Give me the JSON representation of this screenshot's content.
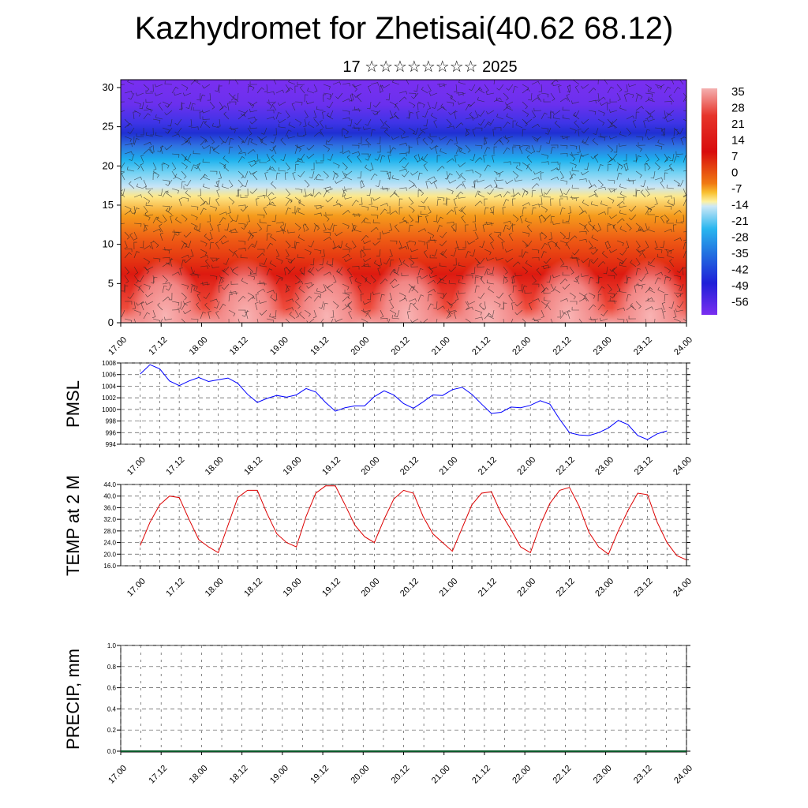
{
  "header": {
    "title": "Kazhydromet for Zhetisai(40.62 68.12)",
    "subtitle": "17 ☆☆☆☆☆☆☆☆ 2025"
  },
  "chart_data": [
    {
      "type": "heatmap",
      "name": "vertical temperature cross-section with wind barbs",
      "x_tick_labels": [
        "17.00",
        "17.12",
        "18.00",
        "18.12",
        "19.00",
        "19.12",
        "20.00",
        "20.12",
        "21.00",
        "21.12",
        "22.00",
        "22.12",
        "23.00",
        "23.12",
        "24.00"
      ],
      "y_tick_labels": [
        "0",
        "5",
        "10",
        "15",
        "20",
        "25",
        "30"
      ],
      "ylim": [
        0,
        31
      ],
      "colorbar_labels": [
        "35",
        "28",
        "21",
        "14",
        "7",
        "0",
        "-7",
        "-14",
        "-21",
        "-28",
        "-35",
        "-42",
        "-49",
        "-56"
      ],
      "colors": {
        "hot": "#f5a3a3",
        "warm": "#dd1a10",
        "orange": "#f07a12",
        "yellow": "#fde88a",
        "pale": "#c7e4f6",
        "cyan": "#26b7ef",
        "blue": "#1f3ad6",
        "violet": "#7a2ff0"
      }
    },
    {
      "type": "line",
      "ylabel": "PMSL",
      "color": "#0000ff",
      "y_tick_labels": [
        "1008",
        "1006",
        "1004",
        "1002",
        "1000",
        "998",
        "996",
        "994"
      ],
      "ylim": [
        994,
        1008
      ],
      "x_tick_labels": [
        "17.00",
        "17.12",
        "18.00",
        "18.12",
        "19.00",
        "19.12",
        "20.00",
        "20.12",
        "21.00",
        "21.12",
        "22.00",
        "22.12",
        "23.00",
        "23.12",
        "24.00"
      ],
      "x_range": [
        -6,
        168
      ],
      "x": [
        0,
        3,
        6,
        9,
        12,
        15,
        18,
        21,
        24,
        27,
        30,
        33,
        36,
        39,
        42,
        45,
        48,
        51,
        54,
        57,
        60,
        63,
        66,
        69,
        72,
        75,
        78,
        81,
        84,
        87,
        90,
        93,
        96,
        99,
        102,
        105,
        108,
        111,
        114,
        117,
        120,
        123,
        126,
        129,
        132,
        135,
        138,
        141,
        144,
        147,
        150,
        153,
        156,
        159,
        162
      ],
      "values": [
        1006.1,
        1007.7,
        1007.0,
        1004.9,
        1004.1,
        1004.9,
        1005.5,
        1004.8,
        1005.1,
        1005.4,
        1004.5,
        1002.6,
        1001.2,
        1001.9,
        1002.4,
        1002.1,
        1002.5,
        1003.6,
        1003.0,
        1001.2,
        999.7,
        1000.3,
        1000.6,
        1000.6,
        1002.2,
        1003.2,
        1002.5,
        1001.0,
        1000.2,
        1001.3,
        1002.5,
        1002.4,
        1003.4,
        1003.8,
        1002.6,
        1000.9,
        999.3,
        999.5,
        1000.4,
        1000.3,
        1000.7,
        1001.5,
        1000.9,
        998.3,
        996.0,
        995.6,
        995.5,
        996.0,
        996.8,
        998.1,
        997.4,
        995.5,
        994.8,
        995.8,
        996.3
      ]
    },
    {
      "type": "line",
      "ylabel": "TEMP at 2 M",
      "color": "#dd0000",
      "y_tick_labels": [
        "44.0",
        "40.0",
        "36.0",
        "32.0",
        "28.0",
        "24.0",
        "20.0",
        "16.0"
      ],
      "ylim": [
        16,
        44
      ],
      "x_tick_labels": [
        "17.00",
        "17.12",
        "18.00",
        "18.12",
        "19.00",
        "19.12",
        "20.00",
        "20.12",
        "21.00",
        "21.12",
        "22.00",
        "22.12",
        "23.00",
        "23.12",
        "24.00"
      ],
      "x_range": [
        -6,
        168
      ],
      "x": [
        0,
        3,
        6,
        9,
        12,
        15,
        18,
        21,
        24,
        27,
        30,
        33,
        36,
        39,
        42,
        45,
        48,
        51,
        54,
        57,
        60,
        63,
        66,
        69,
        72,
        75,
        78,
        81,
        84,
        87,
        90,
        93,
        96,
        99,
        102,
        105,
        108,
        111,
        114,
        117,
        120,
        123,
        126,
        129,
        132,
        135,
        138,
        141,
        144,
        147,
        150,
        153,
        156,
        159,
        162,
        165,
        168
      ],
      "values": [
        23.0,
        31.0,
        37.0,
        40.0,
        39.5,
        32.0,
        25.0,
        22.5,
        20.5,
        30.0,
        39.5,
        42.0,
        42.0,
        34.0,
        27.0,
        24.0,
        22.5,
        33.0,
        41.0,
        43.5,
        43.5,
        37.0,
        30.0,
        26.0,
        24.0,
        32.0,
        39.0,
        42.0,
        41.0,
        33.0,
        27.0,
        24.0,
        21.0,
        29.0,
        37.0,
        41.0,
        41.5,
        34.0,
        28.5,
        22.5,
        20.5,
        30.0,
        37.5,
        42.0,
        43.0,
        36.5,
        27.5,
        22.5,
        20.0,
        28.0,
        35.0,
        41.0,
        40.5,
        31.0,
        24.0,
        19.5,
        18.0
      ]
    },
    {
      "type": "bar",
      "ylabel": "PRECIP, mm",
      "y_tick_labels": [
        "1.0",
        "0.8",
        "0.6",
        "0.4",
        "0.2",
        "0.0"
      ],
      "ylim": [
        0,
        1
      ],
      "x_tick_labels": [
        "17.00",
        "17.12",
        "18.00",
        "18.12",
        "19.00",
        "19.12",
        "20.00",
        "20.12",
        "21.00",
        "21.12",
        "22.00",
        "22.12",
        "23.00",
        "23.12",
        "24.00"
      ]
    }
  ]
}
